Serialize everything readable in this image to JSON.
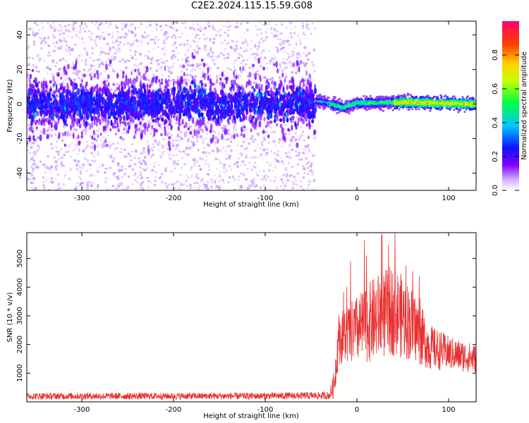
{
  "title": "C2E2.2024.115.15.59.G08",
  "colors": {
    "spectrum_points": "#8a2be2",
    "snr_line": "#e83030",
    "frame": "#000000"
  },
  "chart_data": [
    {
      "type": "heatmap",
      "name": "spectrogram",
      "xlabel": "Height of straight line (km)",
      "ylabel": "Frequency (Hz)",
      "xlim": [
        -360,
        130
      ],
      "ylim": [
        -50,
        48
      ],
      "x_ticks": [
        -300,
        -200,
        -100,
        0,
        100
      ],
      "y_ticks": [
        -40,
        -20,
        0,
        20,
        40
      ],
      "x_tick_labels": [
        "-300",
        "-200",
        "-100",
        "0",
        "100"
      ],
      "y_tick_labels": [
        "-40",
        "-20",
        "0",
        "20",
        "40"
      ],
      "colorbar": {
        "label": "Normalized spectral amplitude",
        "range": [
          0,
          1
        ],
        "ticks": [
          0.0,
          0.2,
          0.4,
          0.6,
          0.8
        ],
        "tick_labels": [
          "0.0",
          "0.2",
          "0.4",
          "0.6",
          "0.8"
        ],
        "colormap": "white-purple-blue-cyan-green-yellow-orange-red-magenta"
      },
      "regions": [
        {
          "x_range": [
            -360,
            -45
          ],
          "description": "diffuse scatter",
          "core_half_width_hz": 8,
          "halo_half_width_hz": 50,
          "peak_amplitude": 0.35
        },
        {
          "x_range": [
            -45,
            130
          ],
          "description": "narrow line",
          "core_half_width_hz": 2,
          "peak_amplitude": 1.0
        }
      ],
      "line_center": [
        [
          -45,
          2
        ],
        [
          -35,
          1
        ],
        [
          -15,
          -2
        ],
        [
          0,
          0.5
        ],
        [
          50,
          1
        ],
        [
          130,
          0
        ]
      ]
    },
    {
      "type": "line",
      "name": "snr",
      "xlabel": "Height of straight line (km)",
      "ylabel": "SNR (10 * v/v)",
      "xlim": [
        -360,
        130
      ],
      "ylim": [
        0,
        5900
      ],
      "x_ticks": [
        -300,
        -200,
        -100,
        0,
        100
      ],
      "y_ticks": [
        1000,
        2000,
        3000,
        4000,
        5000
      ],
      "x_tick_labels": [
        "-300",
        "-200",
        "-100",
        "0",
        "100"
      ],
      "y_tick_labels": [
        "1000",
        "2000",
        "3000",
        "4000",
        "5000"
      ],
      "series": [
        {
          "envelope": [
            {
              "x": -360,
              "mean": 200,
              "spread": 120
            },
            {
              "x": -120,
              "mean": 200,
              "spread": 120
            },
            {
              "x": -30,
              "mean": 220,
              "spread": 130
            },
            {
              "x": -25,
              "mean": 600,
              "spread": 500
            },
            {
              "x": -20,
              "mean": 2200,
              "spread": 900
            },
            {
              "x": 0,
              "mean": 2500,
              "spread": 1200
            },
            {
              "x": 20,
              "mean": 2900,
              "spread": 1500
            },
            {
              "x": 40,
              "mean": 3200,
              "spread": 1600
            },
            {
              "x": 60,
              "mean": 2700,
              "spread": 1300
            },
            {
              "x": 80,
              "mean": 1900,
              "spread": 800
            },
            {
              "x": 100,
              "mean": 1700,
              "spread": 600
            },
            {
              "x": 130,
              "mean": 1500,
              "spread": 500
            }
          ]
        }
      ]
    }
  ]
}
